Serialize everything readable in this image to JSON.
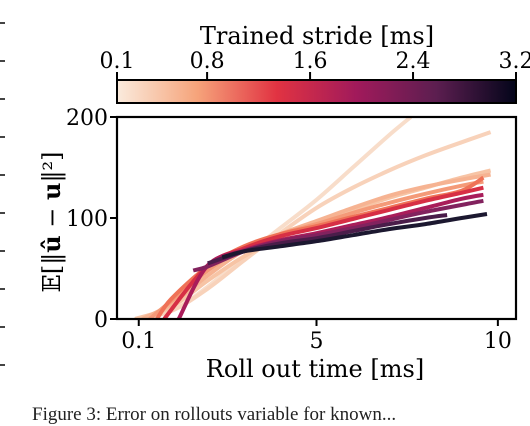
{
  "chart_data": {
    "type": "line",
    "xlabel": "Roll out time [ms]",
    "ylabel_parts": [
      "𝔼[‖",
      "û",
      " − ",
      "u",
      "‖²]"
    ],
    "xticks": [
      {
        "v": 0.1,
        "label": "0.1"
      },
      {
        "v": 5,
        "label": "5"
      },
      {
        "v": 10,
        "label": "10"
      }
    ],
    "yticks": [
      {
        "v": 0,
        "label": "0"
      },
      {
        "v": 100,
        "label": "100"
      },
      {
        "v": 200,
        "label": "200"
      }
    ],
    "xlim": [
      -0.5,
      10.5
    ],
    "ylim": [
      0,
      200
    ],
    "colorbar": {
      "label": "Trained stride [ms]",
      "range": [
        0.1,
        3.2
      ],
      "ticks": [
        {
          "v": 0.1,
          "label": "0.1"
        },
        {
          "v": 0.8,
          "label": "0.8"
        },
        {
          "v": 1.6,
          "label": "1.6"
        },
        {
          "v": 2.4,
          "label": "2.4"
        },
        {
          "v": 3.2,
          "label": "3.2"
        }
      ],
      "colormap": [
        "#faebdd",
        "#f6a47b",
        "#e13342",
        "#a11a5b",
        "#5c1e50",
        "#03051a"
      ]
    },
    "series": [
      {
        "stride": 0.1,
        "color": "#f8ddca",
        "x": [
          0,
          1,
          2,
          3,
          4,
          5,
          6,
          7,
          7.6
        ],
        "y": [
          0,
          8,
          32,
          62,
          90,
          118,
          150,
          182,
          200
        ]
      },
      {
        "stride": 0.2,
        "color": "#f8d2ba",
        "x": [
          0,
          1,
          2,
          3,
          4,
          5,
          6,
          7,
          8,
          9,
          9.8
        ],
        "y": [
          0,
          8,
          30,
          58,
          85,
          110,
          130,
          147,
          162,
          175,
          185
        ]
      },
      {
        "stride": 0.4,
        "color": "#f7c4a5",
        "x": [
          0,
          1,
          2,
          3,
          4,
          5,
          6,
          7,
          8,
          9,
          9.8
        ],
        "y": [
          0,
          12,
          38,
          62,
          80,
          95,
          108,
          120,
          130,
          140,
          147
        ]
      },
      {
        "stride": 0.6,
        "color": "#f6b392",
        "x": [
          0.2,
          1,
          2,
          3,
          4,
          5,
          6,
          7,
          8,
          9,
          9.8
        ],
        "y": [
          0,
          15,
          43,
          68,
          84,
          97,
          110,
          122,
          131,
          138,
          143
        ]
      },
      {
        "stride": 0.8,
        "color": "#f49a78",
        "x": [
          0.4,
          1,
          2,
          3,
          4,
          5,
          6,
          7,
          8,
          9,
          9.6
        ],
        "y": [
          0,
          18,
          48,
          71,
          84,
          94,
          105,
          115,
          124,
          132,
          136
        ]
      },
      {
        "stride": 1.2,
        "color": "#ef7257",
        "x": [
          0.6,
          1,
          2,
          3,
          4,
          5,
          6,
          7,
          8,
          9,
          9.6
        ],
        "y": [
          0,
          20,
          52,
          72,
          84,
          92,
          101,
          110,
          119,
          127,
          140
        ]
      },
      {
        "stride": 1.6,
        "color": "#d72f45",
        "x": [
          0.8,
          2,
          3,
          4,
          5,
          6,
          7,
          8,
          9,
          9.6
        ],
        "y": [
          0,
          53,
          70,
          82,
          90,
          99,
          108,
          117,
          125,
          130
        ]
      },
      {
        "stride": 2.0,
        "color": "#a91d5a",
        "x": [
          1.2,
          2,
          3,
          4,
          5,
          6,
          7,
          8,
          9,
          9.6
        ],
        "y": [
          0,
          53,
          68,
          78,
          85,
          93,
          101,
          110,
          119,
          123
        ]
      },
      {
        "stride": 2.4,
        "color": "#82225e",
        "x": [
          1.6,
          2,
          3,
          4,
          5,
          6,
          7,
          8,
          9.6
        ],
        "y": [
          48,
          52,
          67,
          77,
          83,
          90,
          98,
          106,
          117
        ]
      },
      {
        "stride": 2.8,
        "color": "#4a1d4a",
        "x": [
          2.0,
          3,
          4,
          5,
          6,
          7,
          8,
          8.6
        ],
        "y": [
          55,
          67,
          75,
          80,
          87,
          94,
          100,
          103
        ]
      },
      {
        "stride": 3.2,
        "color": "#1c1830",
        "x": [
          2.4,
          3,
          4,
          5,
          6,
          7,
          8,
          9,
          9.7
        ],
        "y": [
          61,
          67,
          72,
          77,
          83,
          89,
          94,
          100,
          104
        ]
      }
    ]
  },
  "caption": "Figure 3: Error on rollouts variable for known..."
}
